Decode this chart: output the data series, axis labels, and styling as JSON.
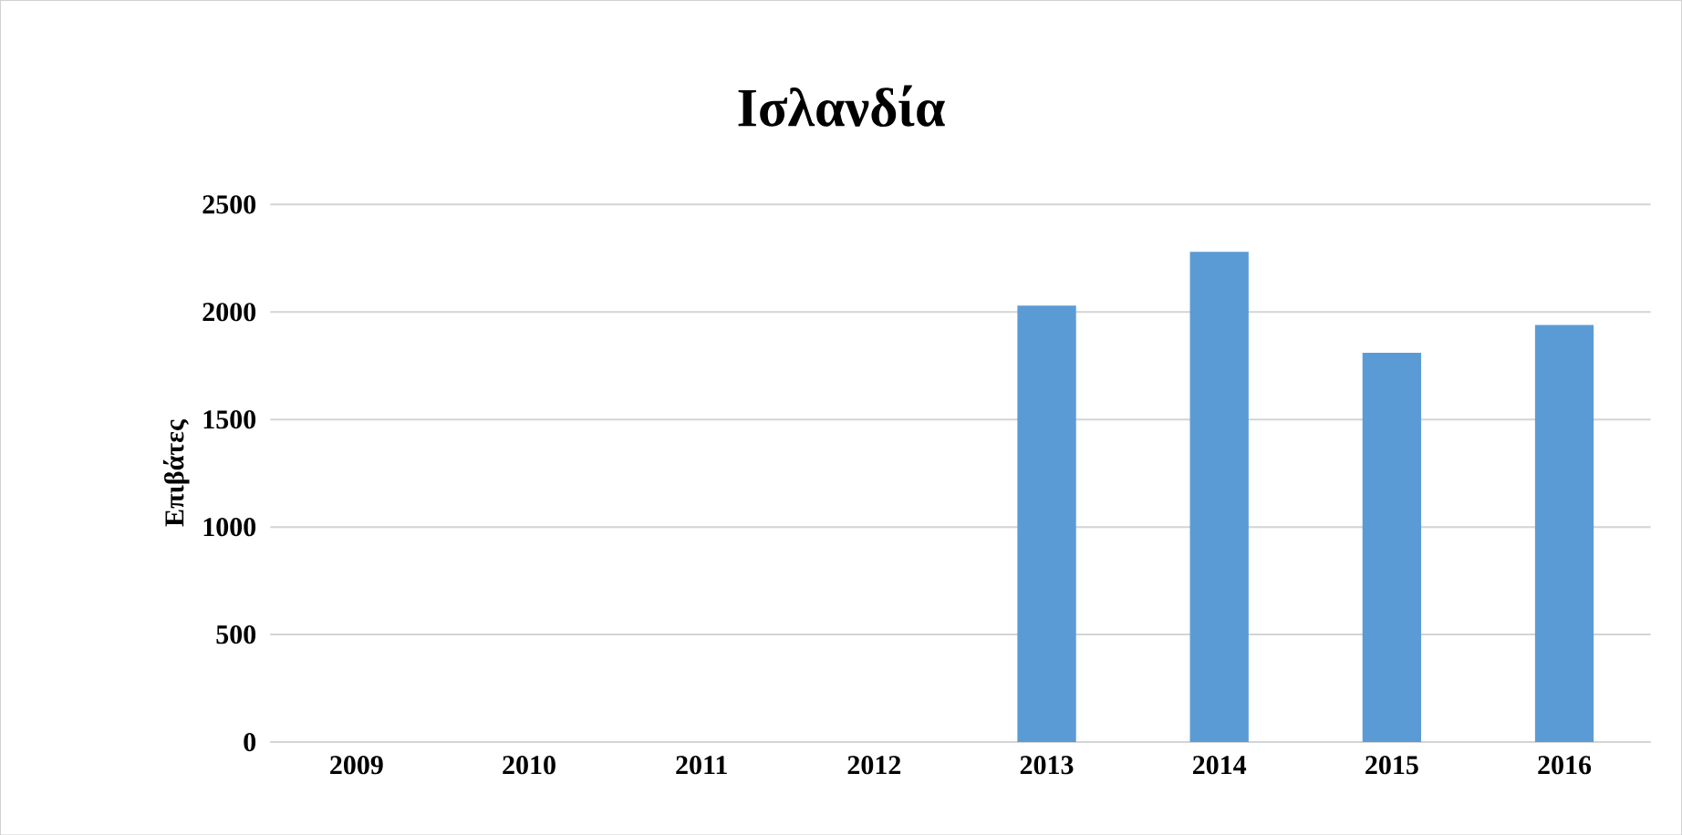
{
  "chart_data": {
    "type": "bar",
    "title": "Ισλανδία",
    "ylabel": "Επιβάτες",
    "categories": [
      "2009",
      "2010",
      "2011",
      "2012",
      "2013",
      "2014",
      "2015",
      "2016"
    ],
    "values": [
      null,
      null,
      null,
      null,
      2030,
      2280,
      1810,
      1940
    ],
    "color": "#5b9bd5",
    "ylim": [
      0,
      2500
    ],
    "yticks": [
      0,
      500,
      1000,
      1500,
      2000,
      2500
    ],
    "grid": "y"
  }
}
